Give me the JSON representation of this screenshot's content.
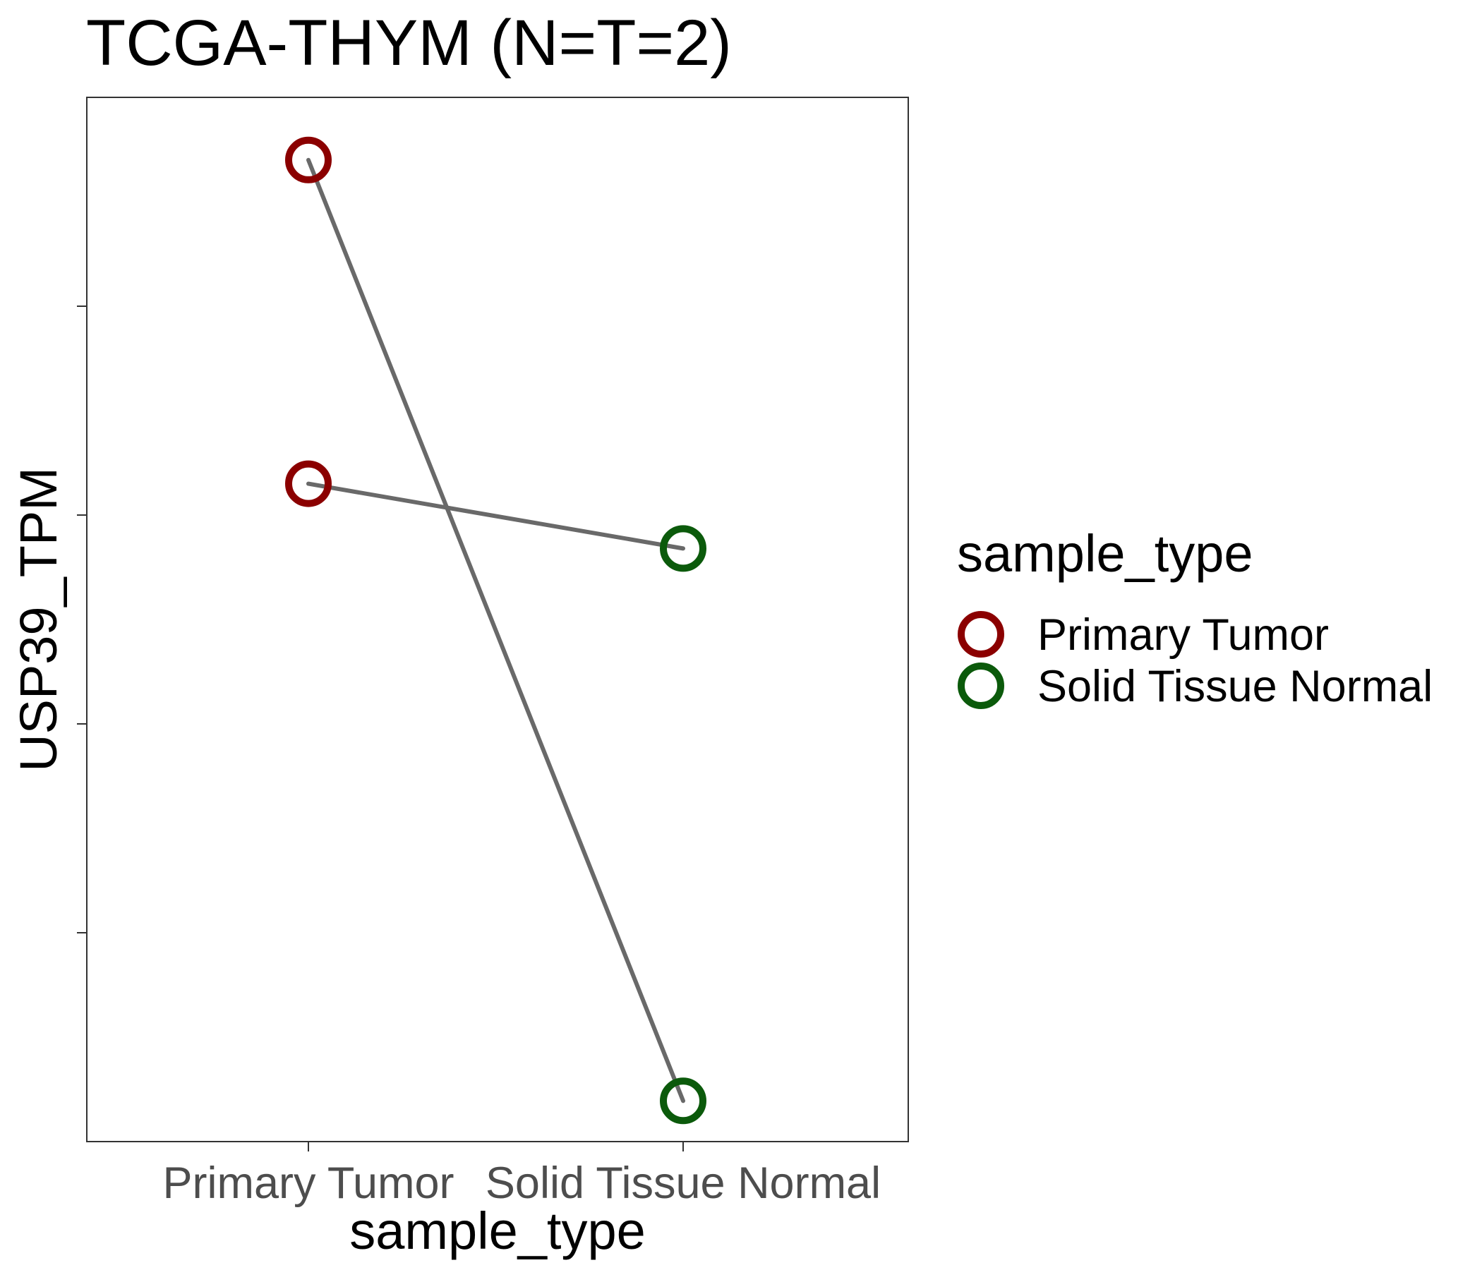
{
  "chart_data": {
    "type": "line",
    "title": "TCGA-THYM  (N=T=2)",
    "xlabel": "sample_type",
    "ylabel": "USP39_TPM",
    "categories": [
      "Primary Tumor",
      "Solid Tissue Normal"
    ],
    "ylim": [
      0,
      100
    ],
    "yticks": [
      20,
      40,
      60,
      80
    ],
    "ytick_labels_shown": false,
    "pairs": [
      {
        "values": [
          94,
          3.9
        ]
      },
      {
        "values": [
          63,
          56.8
        ]
      }
    ],
    "series": [
      {
        "name": "Primary Tumor",
        "color": "#8b0000",
        "values": [
          94,
          63
        ]
      },
      {
        "name": "Solid Tissue Normal",
        "color": "#0b5a0b",
        "values": [
          3.9,
          56.8
        ]
      }
    ],
    "line_color": "#696969",
    "marker": "open-circle",
    "grid": false,
    "legend": {
      "title": "sample_type",
      "placement": "right",
      "items": [
        {
          "label": "Primary Tumor",
          "color": "#8b0000"
        },
        {
          "label": "Solid Tissue Normal",
          "color": "#0b5a0b"
        }
      ]
    }
  }
}
